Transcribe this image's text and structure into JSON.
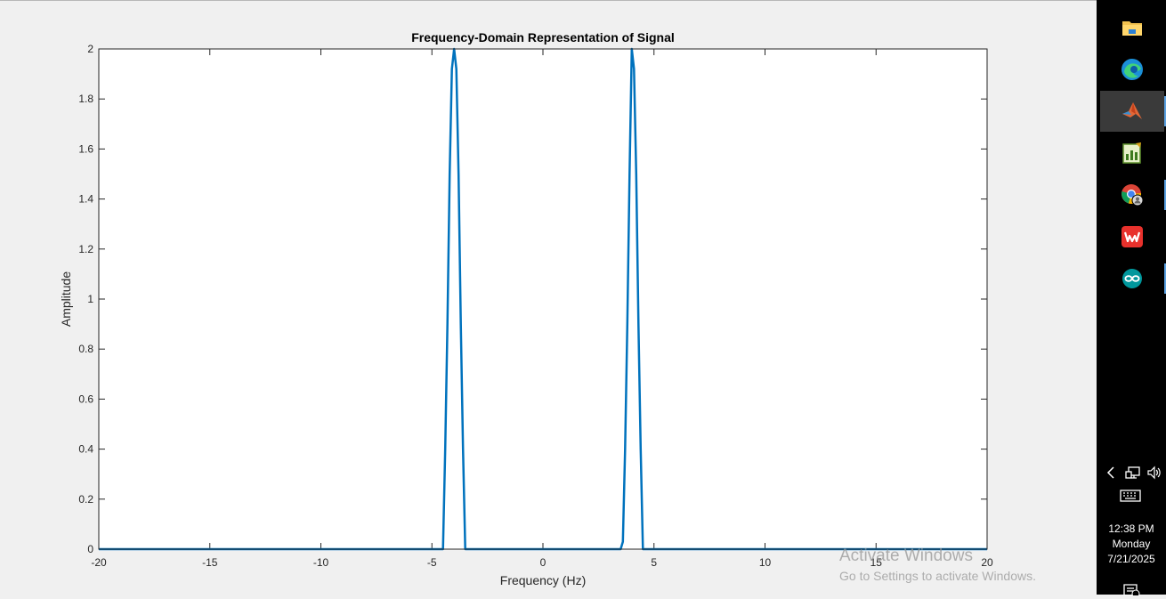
{
  "chart_data": {
    "type": "line",
    "title": "Frequency-Domain Representation of Signal",
    "xlabel": "Frequency (Hz)",
    "ylabel": "Amplitude",
    "xlim": [
      -20,
      20
    ],
    "ylim": [
      0,
      2
    ],
    "xticks": [
      -20,
      -15,
      -10,
      -5,
      0,
      5,
      10,
      15,
      20
    ],
    "yticks": [
      0,
      0.2,
      0.4,
      0.6,
      0.8,
      1,
      1.2,
      1.4,
      1.6,
      1.8,
      2
    ],
    "xtick_labels": [
      "-20",
      "-15",
      "-10",
      "-5",
      "0",
      "5",
      "10",
      "15",
      "20"
    ],
    "ytick_labels": [
      "0",
      "0.2",
      "0.4",
      "0.6",
      "0.8",
      "1",
      "1.2",
      "1.4",
      "1.6",
      "1.8",
      "2"
    ],
    "grid": false,
    "series": [
      {
        "color": "#0072bd",
        "x": [
          -20,
          -4.5,
          -4.4,
          -4.3,
          -4.2,
          -4.1,
          -4.0,
          -3.9,
          -3.8,
          -3.7,
          -3.6,
          -3.5,
          3.5,
          3.6,
          3.7,
          3.8,
          3.9,
          4.0,
          4.1,
          4.2,
          4.3,
          4.4,
          4.5,
          20
        ],
        "y": [
          0,
          0,
          0.4,
          0.9,
          1.5,
          1.92,
          2.0,
          1.92,
          1.5,
          0.9,
          0.4,
          0,
          0,
          0.03,
          0.4,
          0.9,
          1.5,
          2.0,
          1.92,
          1.5,
          0.9,
          0.4,
          0,
          0
        ]
      }
    ]
  },
  "taskbar": {
    "apps": [
      {
        "icon": "file-explorer-icon"
      },
      {
        "icon": "edge-browser-icon"
      },
      {
        "icon": "matlab-icon",
        "active": true
      },
      {
        "icon": "notepad-chart-icon"
      },
      {
        "icon": "chrome-icon"
      },
      {
        "icon": "wps-office-icon"
      },
      {
        "icon": "arduino-icon"
      }
    ],
    "tray_icons": [
      "chevron-left-icon",
      "network-icon",
      "volume-icon",
      "keyboard-icon",
      "notification-icon"
    ],
    "clock": {
      "time": "12:38 PM",
      "day": "Monday",
      "date": "7/21/2025"
    }
  },
  "watermark": {
    "title": "Activate Windows",
    "subtitle": "Go to Settings to activate Windows."
  }
}
